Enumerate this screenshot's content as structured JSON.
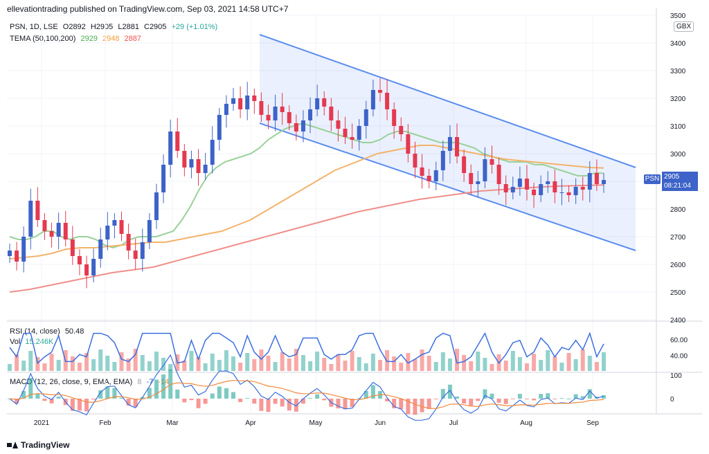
{
  "header": {
    "attribution": "ellevationtrading published on TradingView.com, Sep 03, 2021 14:58 UTC+7"
  },
  "price_legend": {
    "symbol_line": "PSN, 1D, LSE",
    "open": "O2892",
    "high": "H2905",
    "low": "L2881",
    "close": "C2905",
    "change": "+29 (+1.01%)",
    "tema_label": "TEMA (50,100,200)",
    "tema_values": [
      "2929",
      "2948",
      "2887"
    ]
  },
  "rsi_legend": {
    "label": "RSI (14, close)",
    "value": "50.48",
    "vol_label": "Vol",
    "vol_value": "15.246K"
  },
  "macd_legend": {
    "label": "MACD (12, 26, close, 9, EMA, EMA)",
    "v1": "8",
    "v2": "-7",
    "v3": "-14"
  },
  "currency_badge": "GBX",
  "last_price_tag": {
    "symbol": "PSN",
    "price": "2905",
    "countdown": "08:21:04"
  },
  "footer": {
    "brand": "TradingView"
  },
  "colors": {
    "up": "#26a69a",
    "down": "#ef5350",
    "candle_up": "#3d63c8",
    "candle_down": "#e53950",
    "channel": "#5b8def",
    "tema50": "#9ad19a",
    "tema100": "#f4b26b",
    "tema200": "#f08f8a",
    "rsi": "#3b6fe0",
    "macd": "#3b6fe0",
    "signal": "#f2893a"
  },
  "chart_data": {
    "type": "candlestick",
    "title": "PSN, 1D, LSE",
    "ylabel": "GBX",
    "ylim": [
      2400,
      3500
    ],
    "y_ticks": [
      2400,
      2500,
      2600,
      2700,
      2800,
      2900,
      3000,
      3100,
      3200,
      3300,
      3400,
      3500
    ],
    "x_ticks": [
      "2021",
      "Feb",
      "Mar",
      "Apr",
      "May",
      "Jun",
      "Jul",
      "Aug",
      "Sep"
    ],
    "close_series": [
      2650,
      2610,
      2700,
      2830,
      2760,
      2720,
      2700,
      2750,
      2690,
      2630,
      2600,
      2560,
      2620,
      2690,
      2740,
      2760,
      2710,
      2650,
      2620,
      2680,
      2760,
      2860,
      2960,
      3080,
      3010,
      2950,
      2980,
      2930,
      2960,
      3050,
      3140,
      3180,
      3200,
      3160,
      3210,
      3190,
      3140,
      3120,
      3170,
      3150,
      3110,
      3080,
      3120,
      3160,
      3200,
      3170,
      3120,
      3090,
      3060,
      3050,
      3100,
      3160,
      3230,
      3220,
      3160,
      3100,
      3070,
      3000,
      2950,
      2920,
      2900,
      2940,
      3010,
      3060,
      2990,
      2930,
      2890,
      2900,
      2980,
      2960,
      2890,
      2860,
      2880,
      2910,
      2870,
      2850,
      2890,
      2900,
      2860,
      2860,
      2850,
      2880,
      2870,
      2930,
      2890,
      2905
    ],
    "series": [
      {
        "name": "TEMA 50",
        "last": 2929,
        "values": [
          2700,
          2690,
          2690,
          2700,
          2720,
          2720,
          2700,
          2690,
          2700,
          2700,
          2690,
          2670,
          2660,
          2670,
          2690,
          2700,
          2700,
          2700,
          2710,
          2720,
          2760,
          2810,
          2870,
          2920,
          2950,
          2970,
          2980,
          2990,
          3000,
          3020,
          3050,
          3070,
          3090,
          3100,
          3110,
          3100,
          3090,
          3080,
          3070,
          3060,
          3050,
          3040,
          3040,
          3050,
          3070,
          3080,
          3080,
          3070,
          3060,
          3050,
          3040,
          3040,
          3040,
          3030,
          3020,
          3000,
          2990,
          2980,
          2970,
          2970,
          2970,
          2960,
          2960,
          2950,
          2940,
          2930,
          2920,
          2920,
          2930,
          2929
        ]
      },
      {
        "name": "TEMA 100",
        "last": 2948,
        "values": [
          2620,
          2625,
          2630,
          2640,
          2655,
          2660,
          2660,
          2665,
          2670,
          2675,
          2680,
          2680,
          2690,
          2700,
          2710,
          2720,
          2740,
          2760,
          2790,
          2820,
          2850,
          2880,
          2910,
          2940,
          2960,
          2980,
          3000,
          3010,
          3020,
          3030,
          3030,
          3020,
          3010,
          3000,
          2990,
          2980,
          2975,
          2970,
          2965,
          2960,
          2955,
          2950,
          2948
        ]
      },
      {
        "name": "TEMA 200",
        "last": 2887,
        "values": [
          2500,
          2510,
          2525,
          2540,
          2555,
          2570,
          2580,
          2590,
          2610,
          2630,
          2650,
          2670,
          2690,
          2710,
          2730,
          2750,
          2770,
          2790,
          2805,
          2820,
          2835,
          2845,
          2855,
          2865,
          2870,
          2875,
          2880,
          2883,
          2885,
          2887
        ]
      }
    ],
    "channel": {
      "upper": [
        [
          "Apr",
          3430
        ],
        [
          "Sep+",
          2950
        ]
      ],
      "lower": [
        [
          "Apr",
          3110
        ],
        [
          "Sep+",
          2650
        ]
      ]
    },
    "last_price": 2905,
    "rsi": {
      "ylim": [
        20,
        80
      ],
      "ticks": [
        40,
        60
      ],
      "last": 50.48
    },
    "macd": {
      "ticks": [
        0,
        100
      ],
      "macd": 8,
      "signal": -7,
      "histogram": -14
    }
  }
}
